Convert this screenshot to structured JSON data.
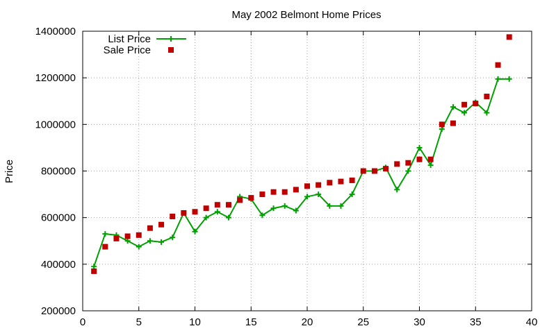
{
  "chart_data": {
    "type": "line",
    "title": "May 2002 Belmont Home Prices",
    "xlabel": "",
    "ylabel": "Price",
    "xlim": [
      0,
      40
    ],
    "ylim": [
      200000,
      1400000
    ],
    "x_ticks": [
      "0",
      "5",
      "10",
      "15",
      "20",
      "25",
      "30",
      "35",
      "40"
    ],
    "y_ticks": [
      "200000",
      "400000",
      "600000",
      "800000",
      "1000000",
      "1200000",
      "1400000"
    ],
    "grid": true,
    "legend_position": "top-left",
    "series": [
      {
        "name": "List Price",
        "style": "line-with-plus-markers",
        "color": "#00a000",
        "x": [
          1,
          2,
          3,
          4,
          5,
          6,
          7,
          8,
          9,
          10,
          11,
          12,
          13,
          14,
          15,
          16,
          17,
          18,
          19,
          20,
          21,
          22,
          23,
          24,
          25,
          26,
          27,
          28,
          29,
          30,
          31,
          32,
          33,
          34,
          35,
          36,
          37,
          38
        ],
        "values": [
          390000,
          530000,
          525000,
          500000,
          475000,
          500000,
          495000,
          515000,
          620000,
          540000,
          600000,
          625000,
          600000,
          690000,
          680000,
          610000,
          640000,
          650000,
          630000,
          690000,
          700000,
          650000,
          650000,
          700000,
          800000,
          800000,
          815000,
          720000,
          800000,
          900000,
          825000,
          980000,
          1075000,
          1050000,
          1095000,
          1050000,
          1195000,
          1195000
        ]
      },
      {
        "name": "Sale Price",
        "style": "square-markers",
        "color": "#c00000",
        "x": [
          1,
          2,
          3,
          4,
          5,
          6,
          7,
          8,
          9,
          10,
          11,
          12,
          13,
          14,
          15,
          16,
          17,
          18,
          19,
          20,
          21,
          22,
          23,
          24,
          25,
          26,
          27,
          28,
          29,
          30,
          31,
          32,
          33,
          34,
          35,
          36,
          37,
          38
        ],
        "values": [
          370000,
          475000,
          510000,
          520000,
          525000,
          555000,
          570000,
          605000,
          620000,
          625000,
          640000,
          655000,
          655000,
          675000,
          685000,
          700000,
          710000,
          710000,
          720000,
          735000,
          740000,
          750000,
          755000,
          760000,
          800000,
          800000,
          810000,
          830000,
          835000,
          850000,
          850000,
          1000000,
          1005000,
          1085000,
          1090000,
          1120000,
          1255000,
          1375000
        ]
      }
    ]
  }
}
